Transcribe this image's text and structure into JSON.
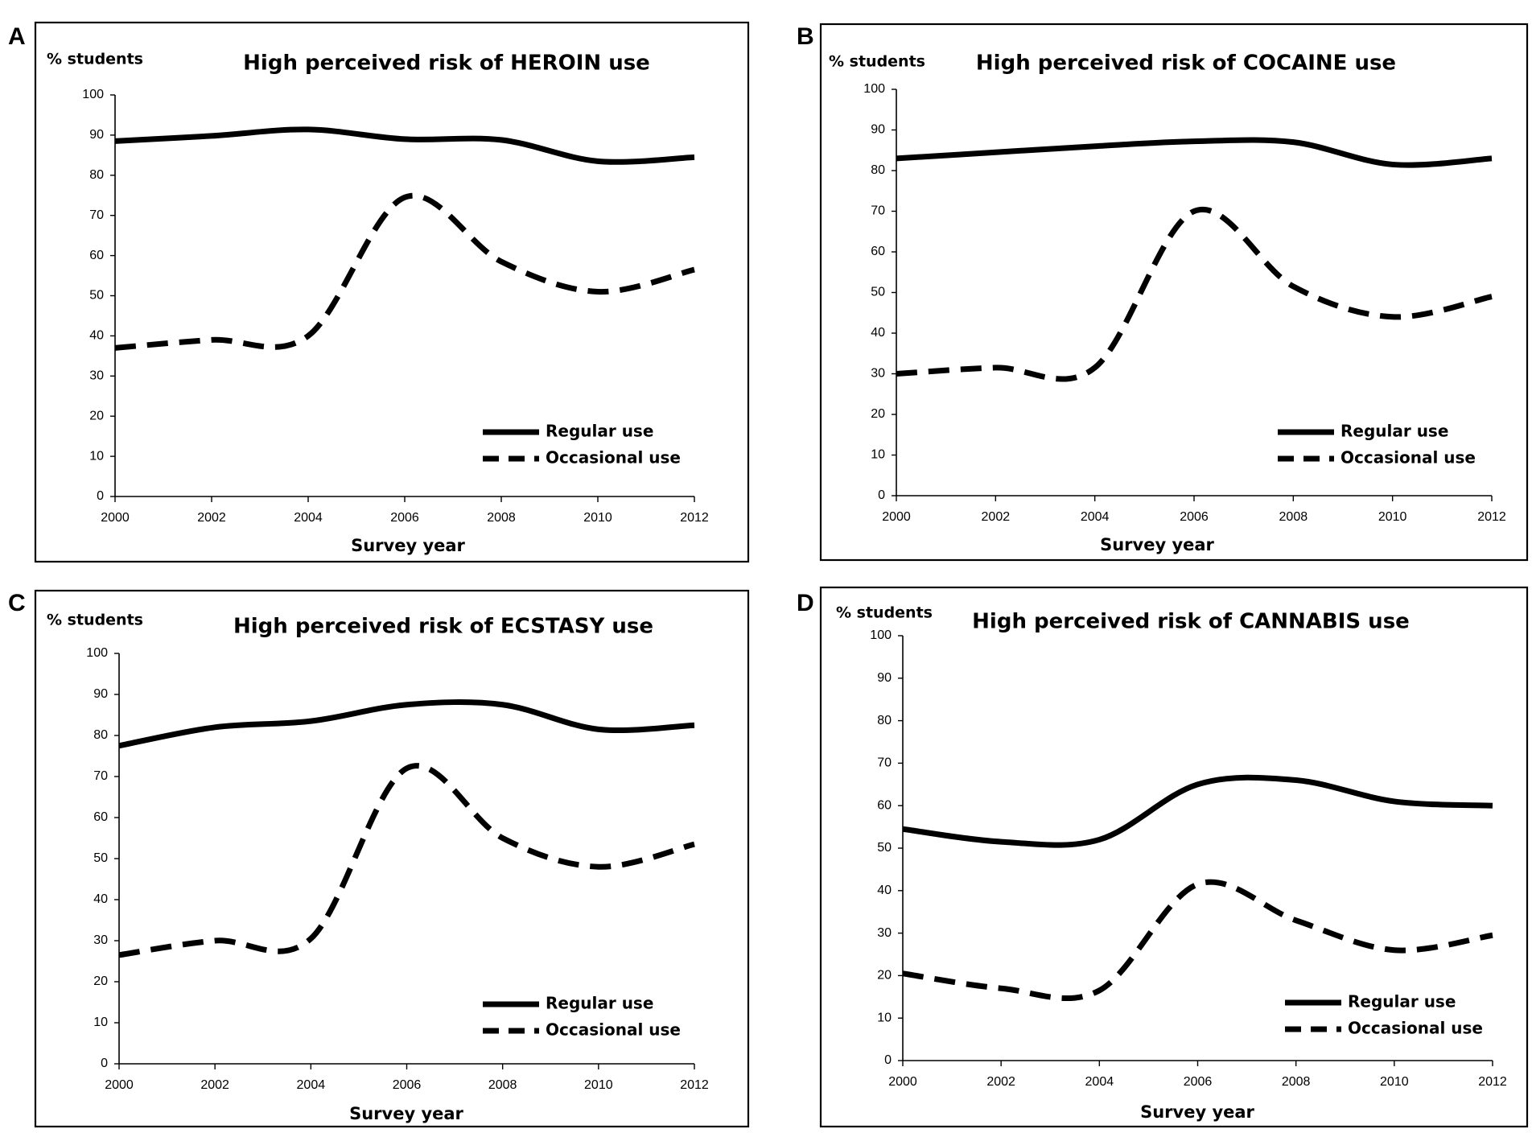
{
  "figure": {
    "panels": [
      "A",
      "B",
      "C",
      "D"
    ]
  },
  "chart_data": [
    {
      "panel": "A",
      "type": "line",
      "title": "High perceived risk of HEROIN use",
      "ylabel": "% students",
      "xlabel": "Survey year",
      "x": [
        2000,
        2002,
        2004,
        2006,
        2008,
        2010,
        2012
      ],
      "xlim": [
        2000,
        2012
      ],
      "ylim": [
        0,
        100
      ],
      "yticks": [
        0,
        10,
        20,
        30,
        40,
        50,
        60,
        70,
        80,
        90,
        100
      ],
      "series": [
        {
          "name": "Regular use",
          "style": "solid",
          "values": [
            88.5,
            89.8,
            91.4,
            89.0,
            88.8,
            83.5,
            84.5
          ]
        },
        {
          "name": "Occasional use",
          "style": "dashed",
          "values": [
            37.0,
            39.0,
            40.0,
            74.5,
            58.5,
            51.0,
            56.5
          ]
        }
      ],
      "legend": {
        "position": "bottom-right",
        "labels": [
          "Regular use",
          "Occasional use"
        ]
      }
    },
    {
      "panel": "B",
      "type": "line",
      "title": "High perceived risk of COCAINE use",
      "ylabel": "% students",
      "xlabel": "Survey year",
      "x": [
        2000,
        2002,
        2004,
        2006,
        2008,
        2010,
        2012
      ],
      "xlim": [
        2000,
        2012
      ],
      "ylim": [
        0,
        100
      ],
      "yticks": [
        0,
        10,
        20,
        30,
        40,
        50,
        60,
        70,
        80,
        90,
        100
      ],
      "series": [
        {
          "name": "Regular use",
          "style": "solid",
          "values": [
            83.0,
            84.5,
            86.0,
            87.2,
            87.0,
            81.5,
            83.0
          ]
        },
        {
          "name": "Occasional use",
          "style": "dashed",
          "values": [
            30.0,
            31.5,
            31.5,
            70.0,
            51.5,
            44.0,
            49.0
          ]
        }
      ],
      "legend": {
        "position": "bottom-right",
        "labels": [
          "Regular use",
          "Occasional use"
        ]
      }
    },
    {
      "panel": "C",
      "type": "line",
      "title": "High perceived risk of ECSTASY use",
      "ylabel": "% students",
      "xlabel": "Survey year",
      "x": [
        2000,
        2002,
        2004,
        2006,
        2008,
        2010,
        2012
      ],
      "xlim": [
        2000,
        2012
      ],
      "ylim": [
        0,
        100
      ],
      "yticks": [
        0,
        10,
        20,
        30,
        40,
        50,
        60,
        70,
        80,
        90,
        100
      ],
      "series": [
        {
          "name": "Regular use",
          "style": "solid",
          "values": [
            77.5,
            82.0,
            83.5,
            87.5,
            87.5,
            81.5,
            82.5
          ]
        },
        {
          "name": "Occasional use",
          "style": "dashed",
          "values": [
            26.5,
            30.0,
            30.5,
            72.0,
            55.0,
            48.0,
            53.5
          ]
        }
      ],
      "legend": {
        "position": "bottom-right",
        "labels": [
          "Regular use",
          "Occasional use"
        ]
      }
    },
    {
      "panel": "D",
      "type": "line",
      "title": "High perceived risk of CANNABIS use",
      "ylabel": "% students",
      "xlabel": "Survey year",
      "x": [
        2000,
        2002,
        2004,
        2006,
        2008,
        2010,
        2012
      ],
      "xlim": [
        2000,
        2012
      ],
      "ylim": [
        0,
        100
      ],
      "yticks": [
        0,
        10,
        20,
        30,
        40,
        50,
        60,
        70,
        80,
        90,
        100
      ],
      "series": [
        {
          "name": "Regular use",
          "style": "solid",
          "values": [
            54.5,
            51.5,
            52.0,
            65.0,
            66.0,
            61.0,
            60.0
          ]
        },
        {
          "name": "Occasional use",
          "style": "dashed",
          "values": [
            20.5,
            17.0,
            16.5,
            41.5,
            33.0,
            26.0,
            29.5
          ]
        }
      ],
      "legend": {
        "position": "bottom-right",
        "labels": [
          "Regular use",
          "Occasional use"
        ]
      }
    }
  ]
}
